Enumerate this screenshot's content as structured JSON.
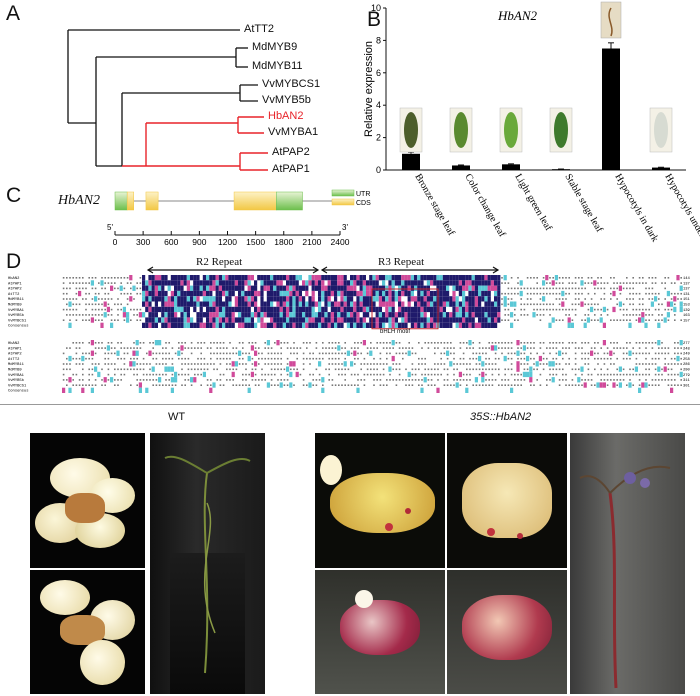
{
  "panels": {
    "a": "A",
    "b": "B",
    "c": "C",
    "d": "D"
  },
  "tree": {
    "taxa": [
      "AtTT2",
      "MdMYB9",
      "MdMYB11",
      "VvMYBCS1",
      "VvMYB5b",
      "HbAN2",
      "VvMYBA1",
      "AtPAP2",
      "AtPAP1"
    ],
    "highlight_taxon": "HbAN2",
    "highlight_color": "#e8242a"
  },
  "chart_data": {
    "type": "bar",
    "title": "HbAN2",
    "ylabel": "Relative expression",
    "xlabel": "",
    "ylim": [
      0,
      10
    ],
    "yticks": [
      0,
      2,
      4,
      6,
      8,
      10
    ],
    "categories": [
      "Bronze stage leaf",
      "Color change leaf",
      "Light green leaf",
      "Stable stage leaf",
      "Hypocotyls in dark",
      "Hypocotyls under light"
    ],
    "values": [
      1.0,
      0.28,
      0.35,
      0.05,
      7.5,
      0.15
    ],
    "errors": [
      0.1,
      0.03,
      0.03,
      0.01,
      0.35,
      0.02
    ],
    "bar_color": "#000000"
  },
  "gene": {
    "name": "HbAN2",
    "legend_utr": "UTR",
    "legend_cds": "CDS",
    "five_prime": "5'",
    "three_prime": "3'",
    "ticks": [
      "0",
      "300",
      "600",
      "900",
      "1200",
      "1500",
      "1800",
      "2100",
      "2400"
    ],
    "utr_color": "#6cbf4c",
    "cds_color": "#f2c744"
  },
  "alignment": {
    "r2_label": "R2 Repeat",
    "r3_label": "R3 Repeat",
    "motif_label": "bHLH motif",
    "block1_names": [
      "HbAN2",
      "AtPAP1",
      "AtPAP2",
      "AtTT2",
      "MdMYB11",
      "MdMYB9",
      "VvMYBA1",
      "VvMYB5b",
      "VvMYBCS1",
      "Consensus"
    ],
    "block1_ends": [
      "144",
      "137",
      "137",
      "131",
      "151",
      "153",
      "139",
      "163",
      "157"
    ],
    "block2_names": [
      "HbAN2",
      "AtPAP1",
      "AtPAP2",
      "AtTT2",
      "MdMYB11",
      "MdMYB9",
      "VvMYBA1",
      "VvMYB5b",
      "VvMYBCS1",
      "Consensus"
    ],
    "block2_ends": [
      "277",
      "248",
      "249",
      "258",
      "286",
      "290",
      "279",
      "311",
      "301"
    ]
  },
  "photos": {
    "wt_label": "WT",
    "oe_label": "35S::HbAN2"
  }
}
